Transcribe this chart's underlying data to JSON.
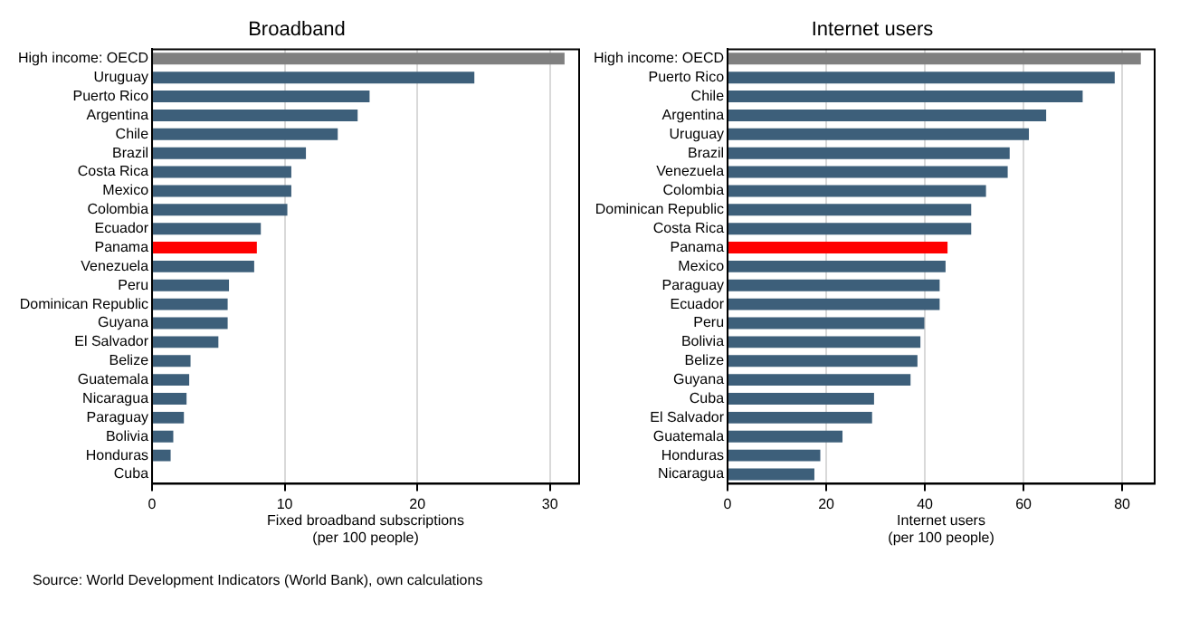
{
  "chart_data": [
    {
      "type": "bar",
      "orientation": "horizontal",
      "title": "Broadband",
      "xlabel": "Fixed broadband subscriptions\n(per 100 people)",
      "categories": [
        "High income: OECD",
        "Uruguay",
        "Puerto Rico",
        "Argentina",
        "Chile",
        "Brazil",
        "Costa Rica",
        "Mexico",
        "Colombia",
        "Ecuador",
        "Panama",
        "Venezuela",
        "Peru",
        "Dominican Republic",
        "Guyana",
        "El Salvador",
        "Belize",
        "Guatemala",
        "Nicaragua",
        "Paraguay",
        "Bolivia",
        "Honduras",
        "Cuba"
      ],
      "values": [
        31.1,
        24.3,
        16.4,
        15.5,
        14.0,
        11.6,
        10.5,
        10.5,
        10.2,
        8.2,
        7.9,
        7.7,
        5.8,
        5.7,
        5.7,
        5.0,
        2.9,
        2.8,
        2.6,
        2.4,
        1.6,
        1.4,
        0
      ],
      "colors": [
        "#808080",
        "#3d5f7a",
        "#3d5f7a",
        "#3d5f7a",
        "#3d5f7a",
        "#3d5f7a",
        "#3d5f7a",
        "#3d5f7a",
        "#3d5f7a",
        "#3d5f7a",
        "#ff0000",
        "#3d5f7a",
        "#3d5f7a",
        "#3d5f7a",
        "#3d5f7a",
        "#3d5f7a",
        "#3d5f7a",
        "#3d5f7a",
        "#3d5f7a",
        "#3d5f7a",
        "#3d5f7a",
        "#3d5f7a",
        "#3d5f7a"
      ],
      "xlim": [
        0,
        32.2
      ],
      "xticks": [
        0,
        10,
        20,
        30
      ],
      "grid": "x",
      "legend": false,
      "annotations": [
        "Source: World Development Indicators (World Bank), own calculations"
      ]
    },
    {
      "type": "bar",
      "orientation": "horizontal",
      "title": "Internet users",
      "xlabel": "Internet users\n(per 100 people)",
      "categories": [
        "High income: OECD",
        "Puerto Rico",
        "Chile",
        "Argentina",
        "Uruguay",
        "Brazil",
        "Venezuela",
        "Colombia",
        "Dominican Republic",
        "Costa Rica",
        "Panama",
        "Mexico",
        "Paraguay",
        "Ecuador",
        "Peru",
        "Bolivia",
        "Belize",
        "Guyana",
        "Cuba",
        "El Salvador",
        "Guatemala",
        "Honduras",
        "Nicaragua"
      ],
      "values": [
        83.8,
        78.5,
        72.0,
        64.6,
        61.1,
        57.2,
        56.8,
        52.4,
        49.4,
        49.4,
        44.6,
        44.2,
        43.0,
        43.0,
        39.9,
        39.1,
        38.5,
        37.1,
        29.7,
        29.3,
        23.3,
        18.8,
        17.6
      ],
      "colors": [
        "#808080",
        "#3d5f7a",
        "#3d5f7a",
        "#3d5f7a",
        "#3d5f7a",
        "#3d5f7a",
        "#3d5f7a",
        "#3d5f7a",
        "#3d5f7a",
        "#3d5f7a",
        "#ff0000",
        "#3d5f7a",
        "#3d5f7a",
        "#3d5f7a",
        "#3d5f7a",
        "#3d5f7a",
        "#3d5f7a",
        "#3d5f7a",
        "#3d5f7a",
        "#3d5f7a",
        "#3d5f7a",
        "#3d5f7a",
        "#3d5f7a"
      ],
      "xlim": [
        0,
        86.6
      ],
      "xticks": [
        0,
        20,
        40,
        60,
        80
      ],
      "grid": "x",
      "legend": false
    }
  ]
}
